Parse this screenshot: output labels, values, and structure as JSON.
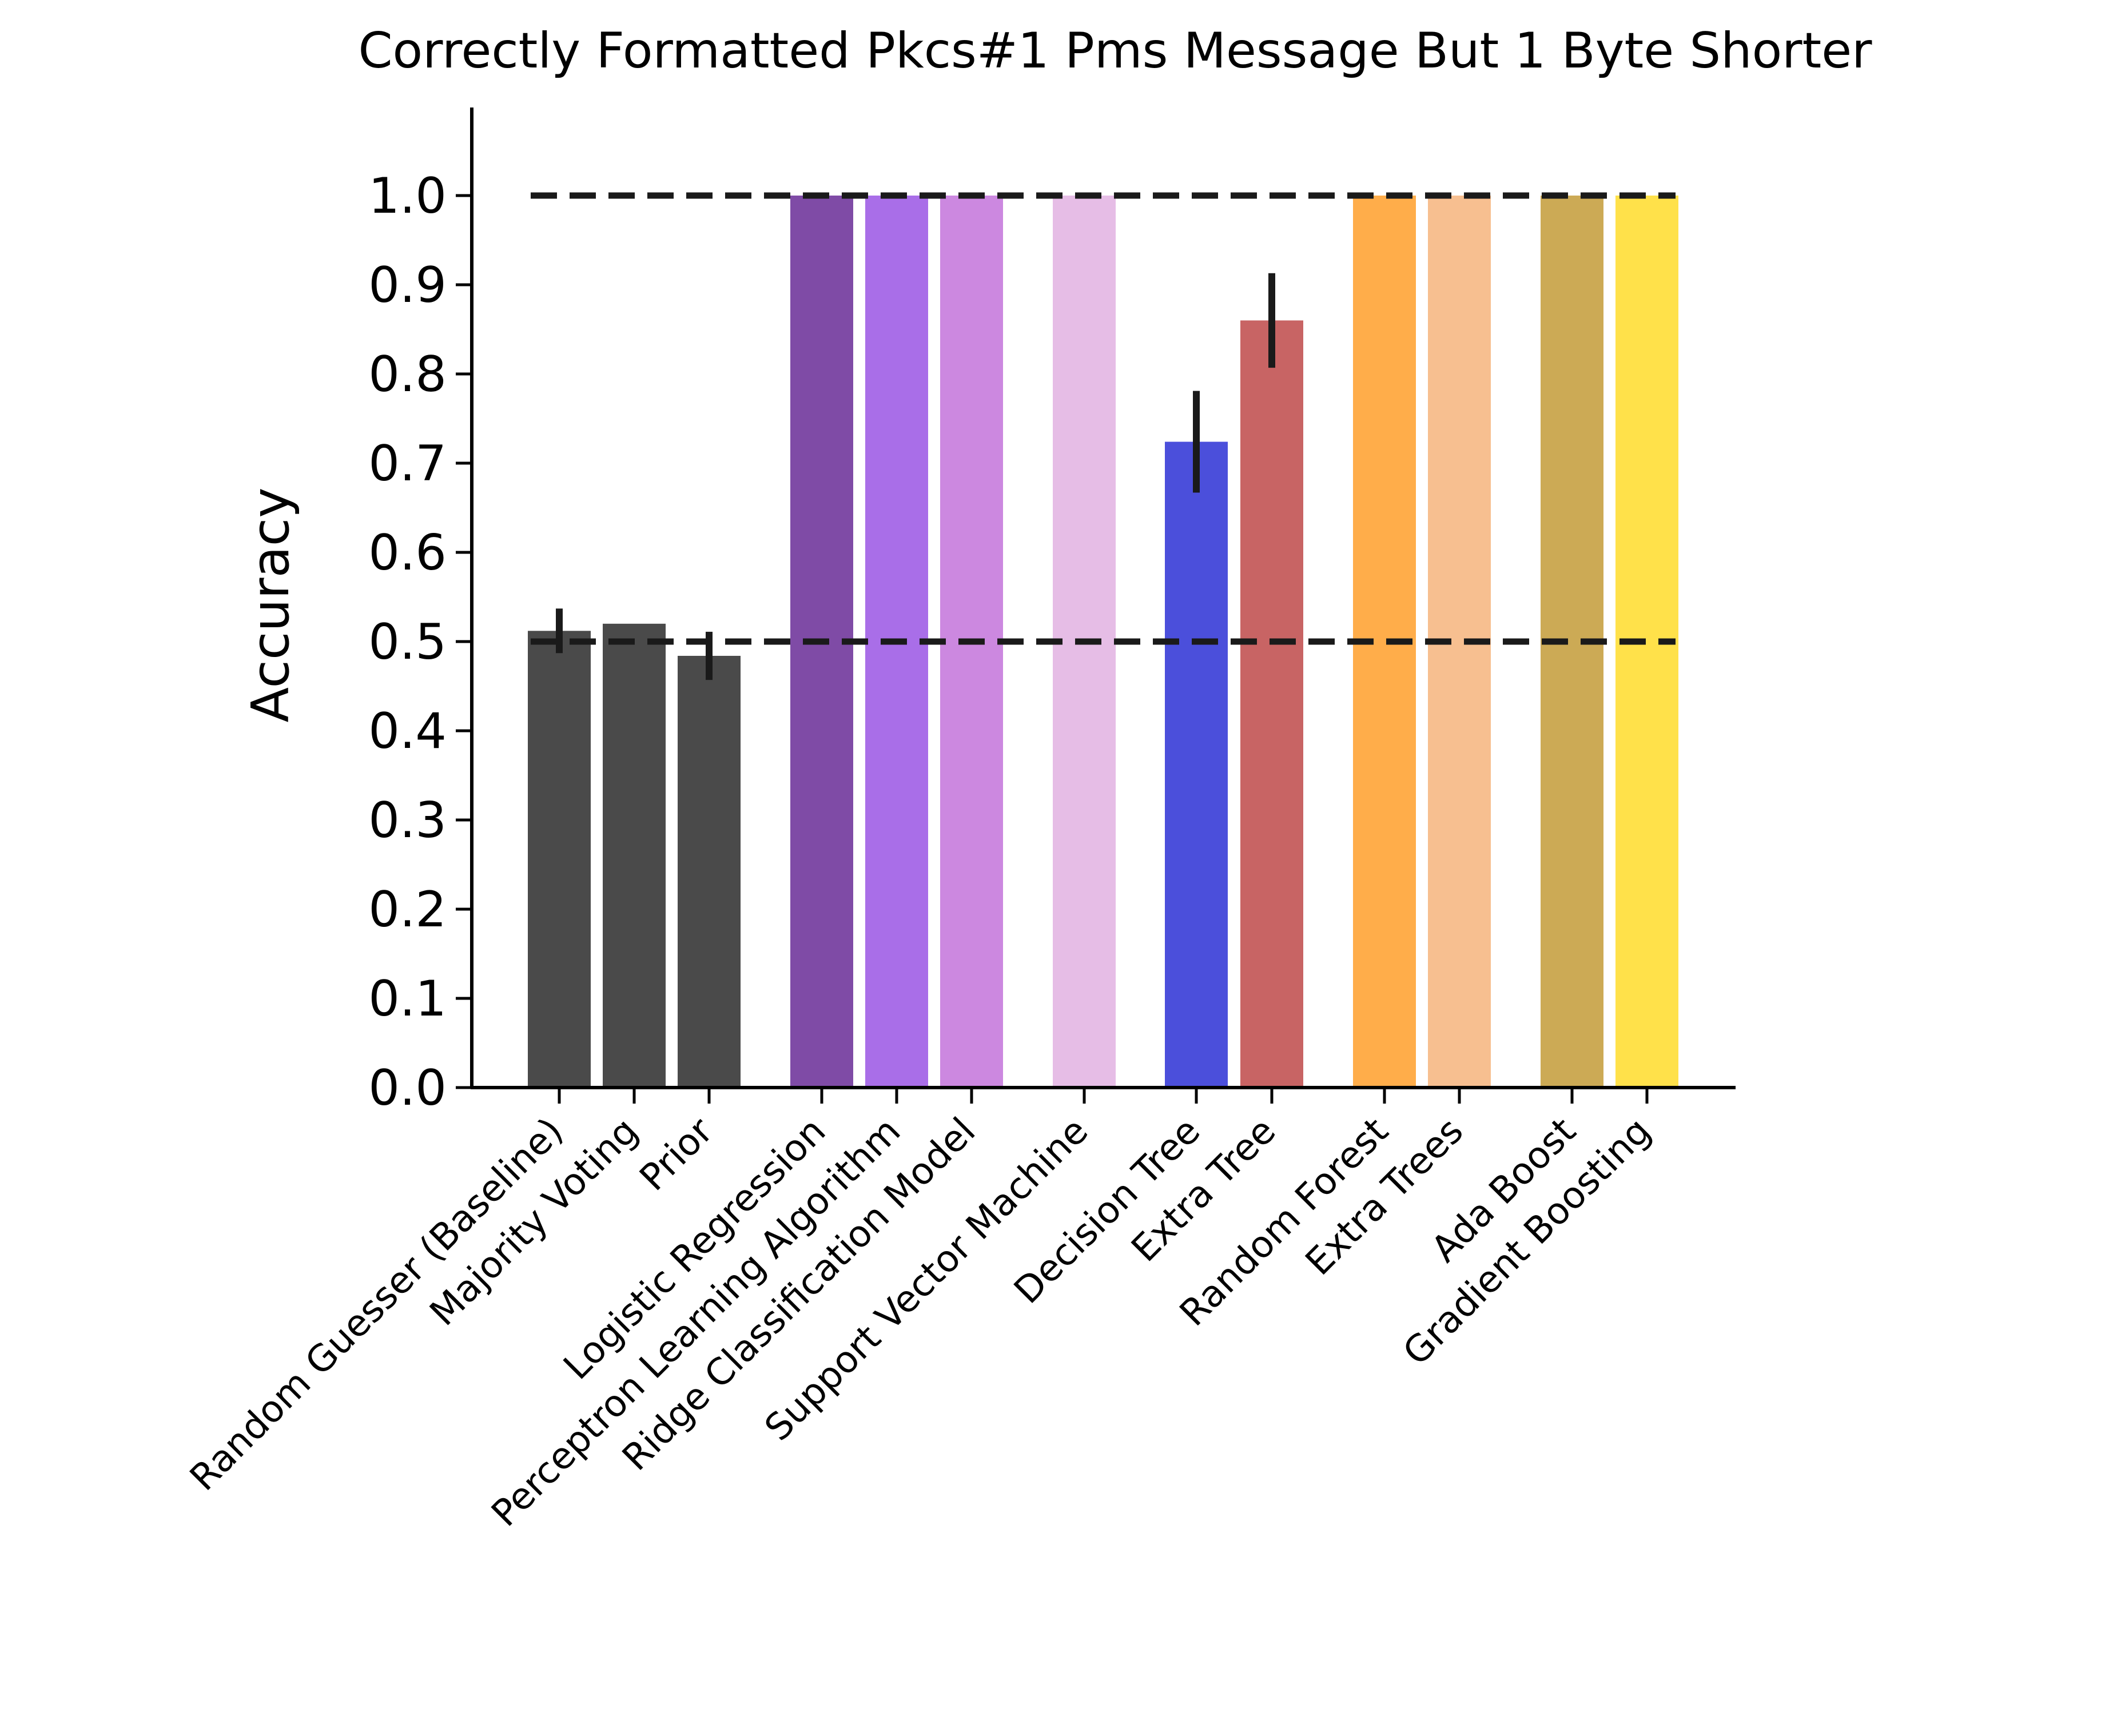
{
  "chart_data": {
    "type": "bar",
    "title": "Correctly Formatted Pkcs#1 Pms Message  But 1 Byte Shorter",
    "xlabel": "",
    "ylabel": "Accuracy",
    "ylim": [
      0,
      1.1
    ],
    "yticks": [
      "0.0",
      "0.1",
      "0.2",
      "0.3",
      "0.4",
      "0.5",
      "0.6",
      "0.7",
      "0.8",
      "0.9",
      "1.0"
    ],
    "grid": false,
    "reference_lines": [
      0.5,
      1.0
    ],
    "bars": [
      {
        "label": "Random Guesser (Baseline)",
        "value": 0.512,
        "err": 0.025,
        "color": "#4a4a4a"
      },
      {
        "label": "Majority Voting",
        "value": 0.52,
        "err": 0.0,
        "color": "#4a4a4a"
      },
      {
        "label": "Prior",
        "value": 0.484,
        "err": 0.027,
        "color": "#4a4a4a"
      },
      {
        "label": "Logistic Regression",
        "value": 1.0,
        "err": 0.0,
        "color": "#7f4ba6"
      },
      {
        "label": "Perceptron Learning Algorithm",
        "value": 1.0,
        "err": 0.0,
        "color": "#a96ee8"
      },
      {
        "label": "Ridge Classification Model",
        "value": 1.0,
        "err": 0.0,
        "color": "#cc88e0"
      },
      {
        "label": "Support Vector Machine",
        "value": 1.0,
        "err": 0.0,
        "color": "#e6bde6"
      },
      {
        "label": "Decision Tree",
        "value": 0.724,
        "err": 0.057,
        "color": "#4b4fdb"
      },
      {
        "label": "Extra Tree",
        "value": 0.86,
        "err": 0.053,
        "color": "#c86464"
      },
      {
        "label": "Random Forest",
        "value": 1.0,
        "err": 0.0,
        "color": "#ffad4a"
      },
      {
        "label": "Extra Trees",
        "value": 1.0,
        "err": 0.0,
        "color": "#f7bf90"
      },
      {
        "label": "Ada Boost",
        "value": 1.0,
        "err": 0.0,
        "color": "#ccaa55"
      },
      {
        "label": "Gradient Boosting",
        "value": 1.0,
        "err": 0.0,
        "color": "#ffe14a"
      }
    ]
  }
}
